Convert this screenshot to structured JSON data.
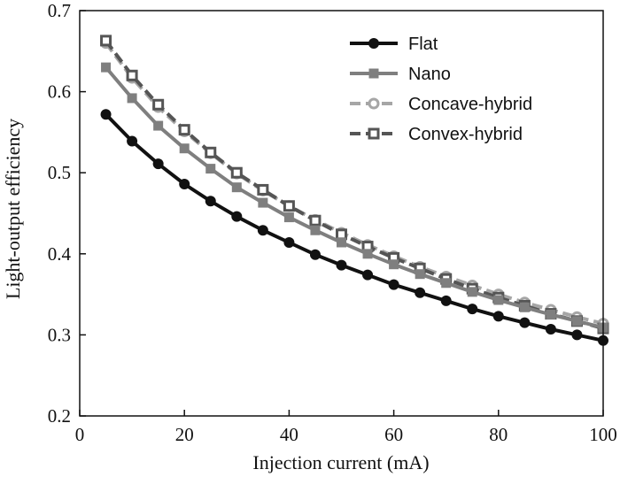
{
  "chart_data": {
    "type": "line",
    "xlabel": "Injection current (mA)",
    "ylabel": "Light-output efficiency",
    "xlim": [
      0,
      100
    ],
    "ylim": [
      0.2,
      0.7
    ],
    "xticks": [
      0,
      20,
      40,
      60,
      80,
      100
    ],
    "yticks": [
      0.2,
      0.3,
      0.4,
      0.5,
      0.6,
      0.7
    ],
    "x": [
      5,
      10,
      15,
      20,
      25,
      30,
      35,
      40,
      45,
      50,
      55,
      60,
      65,
      70,
      75,
      80,
      85,
      90,
      95,
      100
    ],
    "grid": false,
    "legend_position": "top-right",
    "series": [
      {
        "name": "Flat",
        "color": "#111111",
        "marker": "filled-circle",
        "line": "solid",
        "values": [
          0.572,
          0.539,
          0.511,
          0.486,
          0.465,
          0.446,
          0.429,
          0.414,
          0.399,
          0.386,
          0.374,
          0.362,
          0.352,
          0.342,
          0.332,
          0.323,
          0.315,
          0.307,
          0.3,
          0.293
        ]
      },
      {
        "name": "Nano",
        "color": "#7f7f7f",
        "marker": "filled-square",
        "line": "solid",
        "values": [
          0.63,
          0.592,
          0.558,
          0.53,
          0.505,
          0.482,
          0.463,
          0.445,
          0.429,
          0.414,
          0.4,
          0.387,
          0.375,
          0.364,
          0.353,
          0.343,
          0.334,
          0.325,
          0.317,
          0.309
        ]
      },
      {
        "name": "Concave-hybrid",
        "color": "#a6a6a6",
        "marker": "open-circle",
        "line": "dashed",
        "values": [
          0.66,
          0.617,
          0.581,
          0.551,
          0.524,
          0.499,
          0.478,
          0.459,
          0.442,
          0.426,
          0.411,
          0.397,
          0.384,
          0.372,
          0.361,
          0.35,
          0.34,
          0.331,
          0.322,
          0.314
        ]
      },
      {
        "name": "Convex-hybrid",
        "color": "#555555",
        "marker": "open-square",
        "line": "dashed",
        "values": [
          0.663,
          0.62,
          0.584,
          0.553,
          0.525,
          0.5,
          0.479,
          0.459,
          0.441,
          0.424,
          0.409,
          0.395,
          0.382,
          0.369,
          0.357,
          0.346,
          0.336,
          0.326,
          0.317,
          0.308
        ]
      }
    ]
  }
}
